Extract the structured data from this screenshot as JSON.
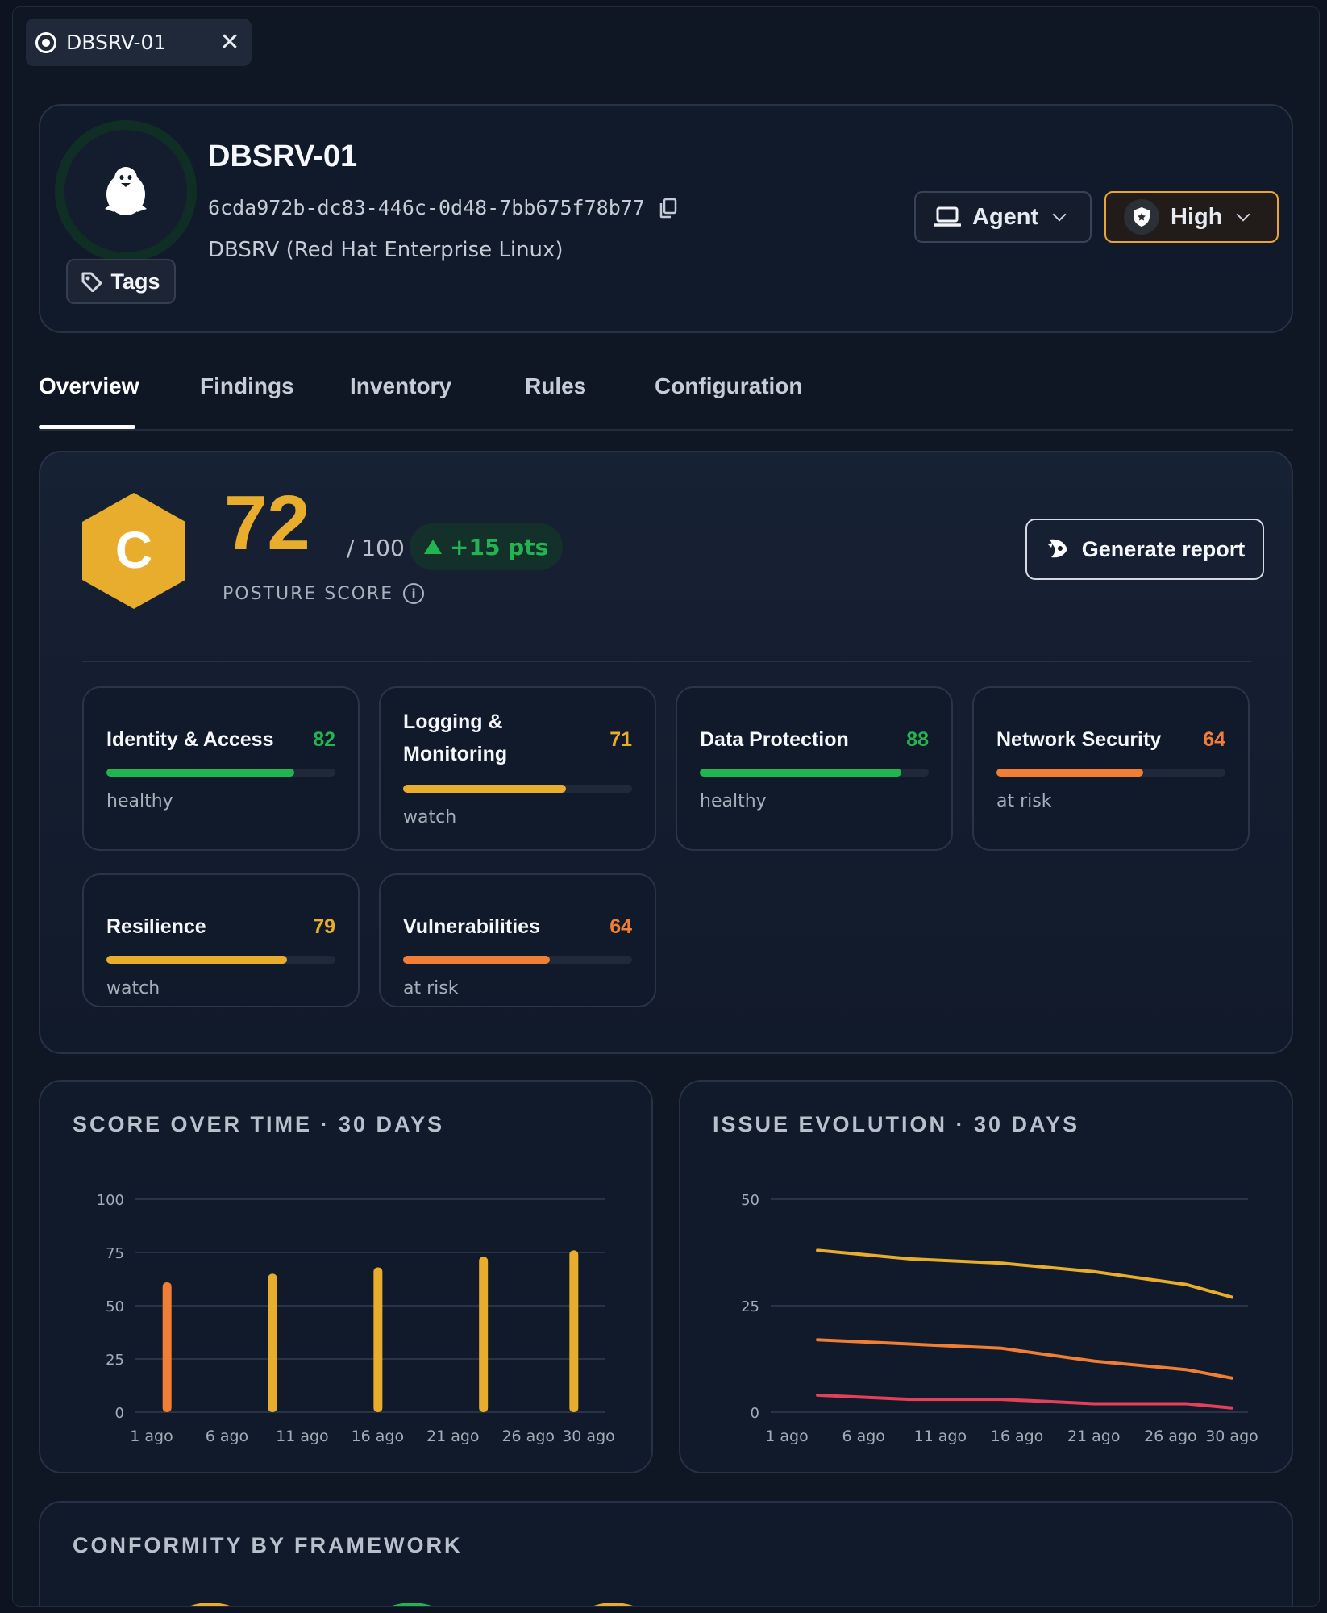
{
  "window_tab": {
    "title": "DBSRV-01",
    "close": "✕"
  },
  "header": {
    "name": "DBSRV-01",
    "id": "6cda972b-dc83-446c-0d48-7bb675f78b77",
    "os": "DBSRV (Red Hat Enterprise Linux)",
    "tags_label": "Tags",
    "agent_label": "Agent",
    "severity_label": "High",
    "colors": {
      "severity_border": "#e8a531",
      "avatar_ring": "#0f2f24"
    }
  },
  "tabs": [
    {
      "label": "Overview",
      "active": true
    },
    {
      "label": "Findings",
      "active": false
    },
    {
      "label": "Inventory",
      "active": false
    },
    {
      "label": "Rules",
      "active": false
    },
    {
      "label": "Configuration",
      "active": false
    }
  ],
  "posture": {
    "grade": "C",
    "score": "72",
    "max": "/ 100",
    "delta": "+15 pts",
    "label": "POSTURE SCORE",
    "info": "i",
    "report_label": "Generate report",
    "categories": [
      {
        "name": "Identity & Access",
        "value": "82",
        "level": 82,
        "status": "healthy",
        "color": "#22b451"
      },
      {
        "name": "Logging & Monitoring",
        "value": "71",
        "level": 71,
        "status": "watch",
        "color": "#e8ad2c"
      },
      {
        "name": "Data Protection",
        "value": "88",
        "level": 88,
        "status": "healthy",
        "color": "#22b451"
      },
      {
        "name": "Network Security",
        "value": "64",
        "level": 64,
        "status": "at risk",
        "color": "#f07e35"
      },
      {
        "name": "Resilience",
        "value": "79",
        "level": 79,
        "status": "watch",
        "color": "#e8ad2c"
      },
      {
        "name": "Vulnerabilities",
        "value": "64",
        "level": 64,
        "status": "at risk",
        "color": "#f07e35"
      }
    ]
  },
  "score_chart": {
    "title": "SCORE OVER TIME · 30 DAYS",
    "chart_data": {
      "type": "bar",
      "title": "SCORE OVER TIME · 30 DAYS",
      "x_ticks": [
        "1 ago",
        "6 ago",
        "11 ago",
        "16 ago",
        "21 ago",
        "26 ago",
        "30 ago"
      ],
      "y_ticks": [
        "0",
        "25",
        "50",
        "75",
        "100"
      ],
      "ylim": [
        0,
        100
      ],
      "xlim": [
        1,
        30
      ],
      "bars": [
        {
          "x": 2,
          "value": 61,
          "color": "#f07e35"
        },
        {
          "x": 9,
          "value": 65,
          "color": "#e8ad2c"
        },
        {
          "x": 16,
          "value": 68,
          "color": "#e8ad2c"
        },
        {
          "x": 23,
          "value": 73,
          "color": "#e8ad2c"
        },
        {
          "x": 29,
          "value": 76,
          "color": "#e8ad2c"
        }
      ],
      "grid": true
    }
  },
  "issue_chart": {
    "title": "ISSUE EVOLUTION · 30 DAYS",
    "chart_data": {
      "type": "line",
      "title": "ISSUE EVOLUTION · 30 DAYS",
      "x_ticks": [
        "1 ago",
        "6 ago",
        "11 ago",
        "16 ago",
        "21 ago",
        "26 ago",
        "30 ago"
      ],
      "y_ticks": [
        "0",
        "25",
        "50"
      ],
      "ylim": [
        0,
        50
      ],
      "xlim": [
        1,
        30
      ],
      "x": [
        3,
        9,
        15,
        21,
        27,
        30
      ],
      "series": [
        {
          "values": [
            38,
            36,
            35,
            33,
            30,
            27
          ],
          "color": "#e8ad2c"
        },
        {
          "values": [
            17,
            16,
            15,
            12,
            10,
            8
          ],
          "color": "#f07e35"
        },
        {
          "values": [
            4,
            3,
            3,
            2,
            2,
            1
          ],
          "color": "#e5405a"
        }
      ],
      "grid": true
    }
  },
  "frameworks": {
    "title": "CONFORMITY BY FRAMEWORK",
    "gauges": [
      {
        "color": "#e8ad2c"
      },
      {
        "color": "#22b451"
      },
      {
        "color": "#e8ad2c"
      }
    ]
  }
}
